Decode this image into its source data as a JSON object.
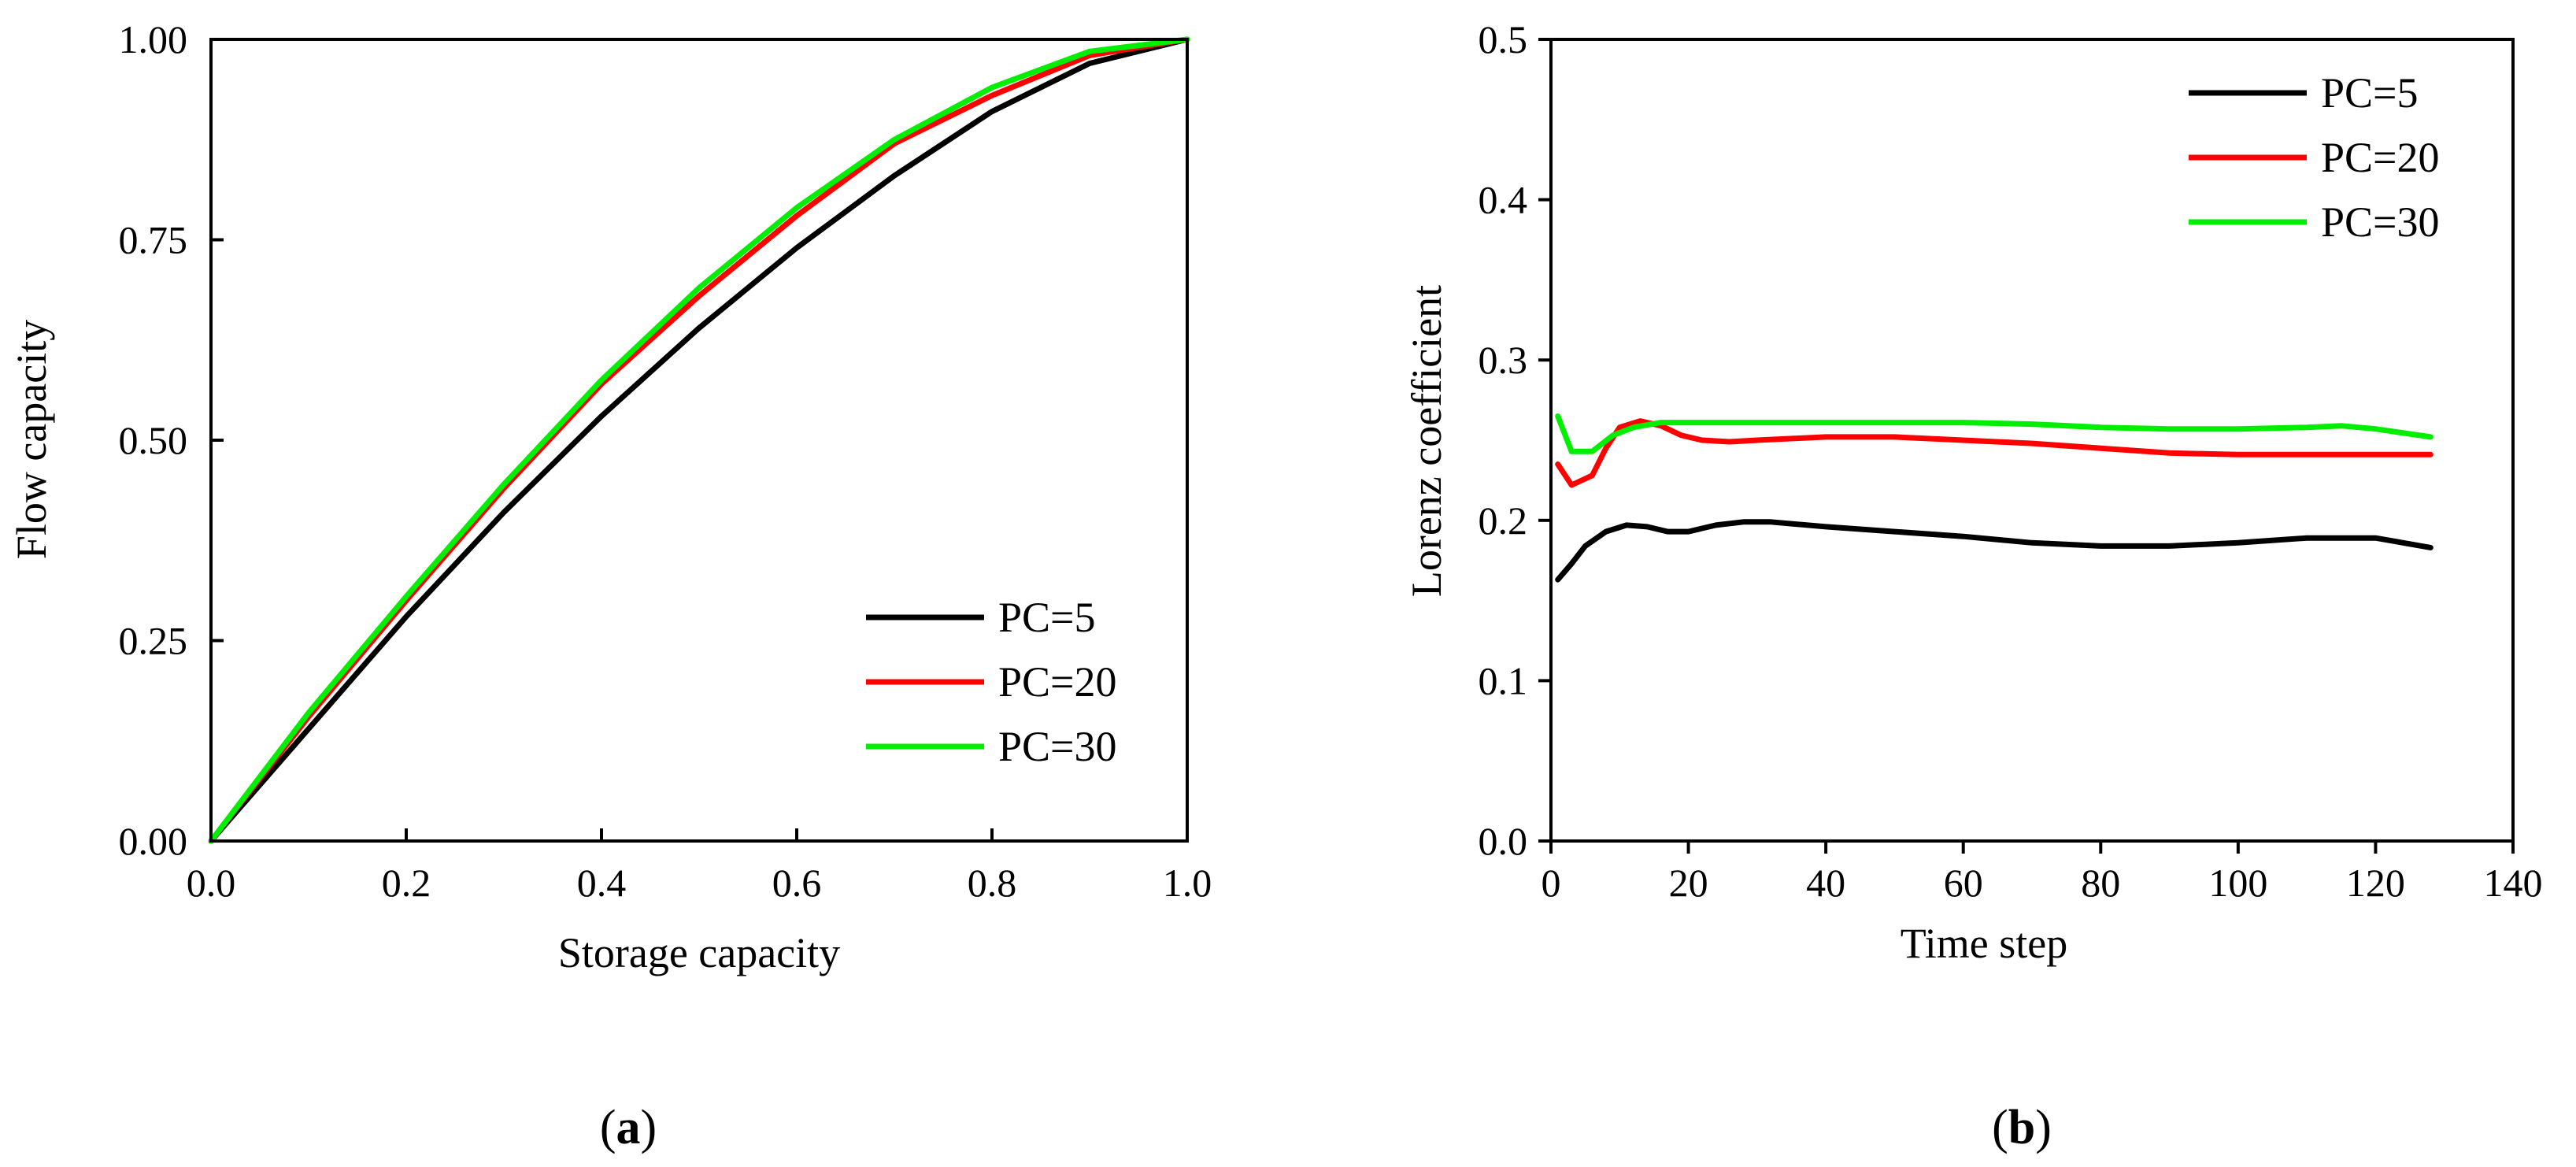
{
  "figure_labels": [
    {
      "open": "(",
      "letter": "a",
      "close": ")"
    },
    {
      "open": "(",
      "letter": "b",
      "close": ")"
    }
  ],
  "chart_data": [
    {
      "type": "line",
      "panel": "a",
      "title": "",
      "xlabel": "Storage capacity",
      "ylabel": "Flow capacity",
      "xlim": [
        0,
        1
      ],
      "ylim": [
        0,
        1
      ],
      "xticks": [
        0.0,
        0.2,
        0.4,
        0.6,
        0.8,
        1.0
      ],
      "xtick_labels": [
        "0.0",
        "0.2",
        "0.4",
        "0.6",
        "0.8",
        "1.0"
      ],
      "yticks": [
        0.0,
        0.25,
        0.5,
        0.75,
        1.0
      ],
      "ytick_labels": [
        "0.00",
        "0.25",
        "0.50",
        "0.75",
        "1.00"
      ],
      "grid": false,
      "legend_position": "bottom-right",
      "series": [
        {
          "name": "PC=5",
          "color": "#000000",
          "x": [
            0,
            0.1,
            0.2,
            0.3,
            0.4,
            0.5,
            0.6,
            0.7,
            0.8,
            0.9,
            1.0
          ],
          "y": [
            0,
            0.14,
            0.28,
            0.41,
            0.53,
            0.64,
            0.74,
            0.83,
            0.91,
            0.97,
            1.0
          ]
        },
        {
          "name": "PC=20",
          "color": "#ff0000",
          "x": [
            0,
            0.1,
            0.2,
            0.3,
            0.4,
            0.5,
            0.6,
            0.7,
            0.8,
            0.9,
            1.0
          ],
          "y": [
            0,
            0.155,
            0.3,
            0.44,
            0.57,
            0.68,
            0.78,
            0.87,
            0.93,
            0.98,
            1.0
          ]
        },
        {
          "name": "PC=30",
          "color": "#00ee00",
          "x": [
            0,
            0.1,
            0.2,
            0.3,
            0.4,
            0.5,
            0.6,
            0.7,
            0.8,
            0.9,
            1.0
          ],
          "y": [
            0,
            0.16,
            0.305,
            0.445,
            0.575,
            0.69,
            0.79,
            0.875,
            0.94,
            0.985,
            1.0
          ]
        }
      ]
    },
    {
      "type": "line",
      "panel": "b",
      "title": "",
      "xlabel": "Time step",
      "ylabel": "Lorenz coefficient",
      "xlim": [
        0,
        140
      ],
      "ylim": [
        0,
        0.5
      ],
      "xticks": [
        0,
        20,
        40,
        60,
        80,
        100,
        120,
        140
      ],
      "xtick_labels": [
        "0",
        "20",
        "40",
        "60",
        "80",
        "100",
        "120",
        "140"
      ],
      "yticks": [
        0.0,
        0.1,
        0.2,
        0.3,
        0.4,
        0.5
      ],
      "ytick_labels": [
        "0.0",
        "0.1",
        "0.2",
        "0.3",
        "0.4",
        "0.5"
      ],
      "grid": false,
      "legend_position": "top-right",
      "series": [
        {
          "name": "PC=5",
          "color": "#000000",
          "x": [
            1,
            3,
            5,
            8,
            11,
            14,
            17,
            20,
            24,
            28,
            32,
            40,
            50,
            60,
            70,
            80,
            90,
            100,
            110,
            120,
            128
          ],
          "y": [
            0.163,
            0.173,
            0.184,
            0.193,
            0.197,
            0.196,
            0.193,
            0.193,
            0.197,
            0.199,
            0.199,
            0.196,
            0.193,
            0.19,
            0.186,
            0.184,
            0.184,
            0.186,
            0.189,
            0.189,
            0.183
          ]
        },
        {
          "name": "PC=20",
          "color": "#ff0000",
          "x": [
            1,
            3,
            6,
            8,
            10,
            13,
            16,
            19,
            22,
            26,
            30,
            40,
            50,
            60,
            70,
            80,
            90,
            100,
            110,
            120,
            128
          ],
          "y": [
            0.235,
            0.222,
            0.228,
            0.245,
            0.258,
            0.262,
            0.259,
            0.253,
            0.25,
            0.249,
            0.25,
            0.252,
            0.252,
            0.25,
            0.248,
            0.245,
            0.242,
            0.241,
            0.241,
            0.241,
            0.241
          ]
        },
        {
          "name": "PC=30",
          "color": "#00ee00",
          "x": [
            1,
            3,
            6,
            9,
            12,
            16,
            20,
            30,
            40,
            50,
            60,
            70,
            80,
            90,
            100,
            110,
            115,
            120,
            128
          ],
          "y": [
            0.265,
            0.243,
            0.243,
            0.253,
            0.258,
            0.261,
            0.261,
            0.261,
            0.261,
            0.261,
            0.261,
            0.26,
            0.258,
            0.257,
            0.257,
            0.258,
            0.259,
            0.257,
            0.252
          ]
        }
      ]
    }
  ]
}
